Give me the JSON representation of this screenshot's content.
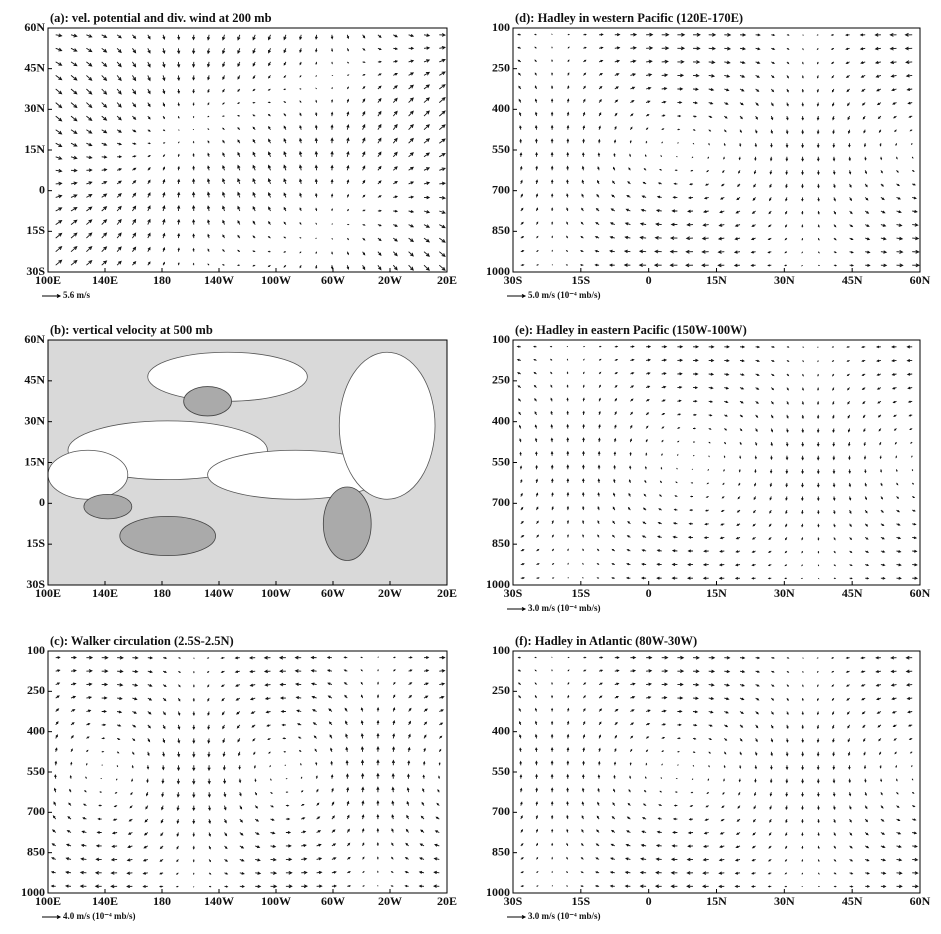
{
  "chart_data": [
    {
      "type": "quiver",
      "title": "(a): vel. potential and div. wind at 200 mb",
      "xlim": [
        100,
        380
      ],
      "xticks": [
        {
          "value": 100,
          "label": "100E"
        },
        {
          "value": 140,
          "label": "140E"
        },
        180,
        {
          "value": 220,
          "label": "140W"
        },
        {
          "value": 260,
          "label": "100W"
        },
        {
          "value": 300,
          "label": "60W"
        },
        {
          "value": 340,
          "label": "20W"
        },
        {
          "value": 380,
          "label": "20E"
        }
      ],
      "ylim": [
        -30,
        60
      ],
      "yticks": [
        {
          "value": -30,
          "label": "30S"
        },
        {
          "value": -15,
          "label": "15S"
        },
        0,
        {
          "value": 15,
          "label": "15N"
        },
        {
          "value": 30,
          "label": "30N"
        },
        {
          "value": 45,
          "label": "45N"
        },
        {
          "value": 60,
          "label": "60N"
        }
      ],
      "reference_label": "5.6 m/s"
    },
    {
      "type": "contour",
      "title": "(b): vertical velocity at 500 mb",
      "xlim": [
        100,
        380
      ],
      "xticks": [
        {
          "value": 100,
          "label": "100E"
        },
        {
          "value": 140,
          "label": "140E"
        },
        180,
        {
          "value": 220,
          "label": "140W"
        },
        {
          "value": 260,
          "label": "100W"
        },
        {
          "value": 300,
          "label": "60W"
        },
        {
          "value": 340,
          "label": "20W"
        },
        {
          "value": 380,
          "label": "20E"
        }
      ],
      "ylim": [
        -30,
        60
      ],
      "yticks": [
        {
          "value": -30,
          "label": "30S"
        },
        {
          "value": -15,
          "label": "15S"
        },
        0,
        {
          "value": 15,
          "label": "15N"
        },
        {
          "value": 30,
          "label": "30N"
        },
        {
          "value": 45,
          "label": "45N"
        },
        {
          "value": 60,
          "label": "60N"
        }
      ]
    },
    {
      "type": "quiver",
      "title": "(c): Walker circulation (2.5S-2.5N)",
      "xlim": [
        100,
        380
      ],
      "xticks": [
        {
          "value": 100,
          "label": "100E"
        },
        {
          "value": 140,
          "label": "140E"
        },
        180,
        {
          "value": 220,
          "label": "140W"
        },
        {
          "value": 260,
          "label": "100W"
        },
        {
          "value": 300,
          "label": "60W"
        },
        {
          "value": 340,
          "label": "20W"
        },
        {
          "value": 380,
          "label": "20E"
        }
      ],
      "ylim": [
        1000,
        100
      ],
      "yticks": [
        100,
        250,
        400,
        550,
        700,
        850,
        1000
      ],
      "reference_label": "4.0 m/s (10⁻⁴ mb/s)"
    },
    {
      "type": "quiver",
      "title": "(d): Hadley in western Pacific (120E-170E)",
      "xlim": [
        -30,
        60
      ],
      "xticks": [
        {
          "value": -30,
          "label": "30S"
        },
        {
          "value": -15,
          "label": "15S"
        },
        0,
        {
          "value": 15,
          "label": "15N"
        },
        {
          "value": 30,
          "label": "30N"
        },
        {
          "value": 45,
          "label": "45N"
        },
        {
          "value": 60,
          "label": "60N"
        }
      ],
      "ylim": [
        1000,
        100
      ],
      "yticks": [
        100,
        250,
        400,
        550,
        700,
        850,
        1000
      ],
      "reference_label": "5.0 m/s (10⁻⁴ mb/s)"
    },
    {
      "type": "quiver",
      "title": "(e): Hadley in eastern Pacific (150W-100W)",
      "xlim": [
        -30,
        60
      ],
      "xticks": [
        {
          "value": -30,
          "label": "30S"
        },
        {
          "value": -15,
          "label": "15S"
        },
        0,
        {
          "value": 15,
          "label": "15N"
        },
        {
          "value": 30,
          "label": "30N"
        },
        {
          "value": 45,
          "label": "45N"
        },
        {
          "value": 60,
          "label": "60N"
        }
      ],
      "ylim": [
        1000,
        100
      ],
      "yticks": [
        100,
        250,
        400,
        550,
        700,
        850,
        1000
      ],
      "reference_label": "3.0 m/s (10⁻⁴ mb/s)"
    },
    {
      "type": "quiver",
      "title": "(f): Hadley in Atlantic (80W-30W)",
      "xlim": [
        -30,
        60
      ],
      "xticks": [
        {
          "value": -30,
          "label": "30S"
        },
        {
          "value": -15,
          "label": "15S"
        },
        0,
        {
          "value": 15,
          "label": "15N"
        },
        {
          "value": 30,
          "label": "30N"
        },
        {
          "value": 45,
          "label": "45N"
        },
        {
          "value": 60,
          "label": "60N"
        }
      ],
      "ylim": [
        1000,
        100
      ],
      "yticks": [
        100,
        250,
        400,
        550,
        700,
        850,
        1000
      ],
      "reference_label": "3.0 m/s (10⁻⁴ mb/s)"
    }
  ]
}
